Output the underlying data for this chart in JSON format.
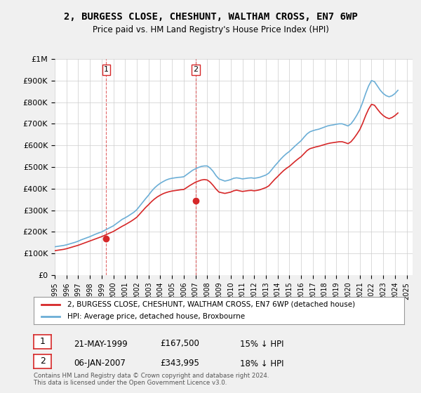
{
  "title": "2, BURGESS CLOSE, CHESHUNT, WALTHAM CROSS, EN7 6WP",
  "subtitle": "Price paid vs. HM Land Registry's House Price Index (HPI)",
  "legend_line1": "2, BURGESS CLOSE, CHESHUNT, WALTHAM CROSS, EN7 6WP (detached house)",
  "legend_line2": "HPI: Average price, detached house, Broxbourne",
  "annotation1_label": "1",
  "annotation1_date": "21-MAY-1999",
  "annotation1_price": "£167,500",
  "annotation1_hpi": "15% ↓ HPI",
  "annotation2_label": "2",
  "annotation2_date": "06-JAN-2007",
  "annotation2_price": "£343,995",
  "annotation2_hpi": "18% ↓ HPI",
  "footer": "Contains HM Land Registry data © Crown copyright and database right 2024.\nThis data is licensed under the Open Government Licence v3.0.",
  "sale1_year": 1999.38,
  "sale1_value": 167500,
  "sale2_year": 2007.01,
  "sale2_value": 343995,
  "hpi_color": "#6baed6",
  "price_color": "#d62728",
  "vline_color": "#d62728",
  "background_color": "#f0f0f0",
  "plot_background": "#ffffff",
  "ylim": [
    0,
    1000000
  ],
  "xlim_start": 1995,
  "xlim_end": 2025.5,
  "yticks": [
    0,
    100000,
    200000,
    300000,
    400000,
    500000,
    600000,
    700000,
    800000,
    900000,
    1000000
  ],
  "xticks": [
    1995,
    1996,
    1997,
    1998,
    1999,
    2000,
    2001,
    2002,
    2003,
    2004,
    2005,
    2006,
    2007,
    2008,
    2009,
    2010,
    2011,
    2012,
    2013,
    2014,
    2015,
    2016,
    2017,
    2018,
    2019,
    2020,
    2021,
    2022,
    2023,
    2024,
    2025
  ],
  "hpi_x": [
    1995.0,
    1995.25,
    1995.5,
    1995.75,
    1996.0,
    1996.25,
    1996.5,
    1996.75,
    1997.0,
    1997.25,
    1997.5,
    1997.75,
    1998.0,
    1998.25,
    1998.5,
    1998.75,
    1999.0,
    1999.25,
    1999.5,
    1999.75,
    2000.0,
    2000.25,
    2000.5,
    2000.75,
    2001.0,
    2001.25,
    2001.5,
    2001.75,
    2002.0,
    2002.25,
    2002.5,
    2002.75,
    2003.0,
    2003.25,
    2003.5,
    2003.75,
    2004.0,
    2004.25,
    2004.5,
    2004.75,
    2005.0,
    2005.25,
    2005.5,
    2005.75,
    2006.0,
    2006.25,
    2006.5,
    2006.75,
    2007.0,
    2007.25,
    2007.5,
    2007.75,
    2008.0,
    2008.25,
    2008.5,
    2008.75,
    2009.0,
    2009.25,
    2009.5,
    2009.75,
    2010.0,
    2010.25,
    2010.5,
    2010.75,
    2011.0,
    2011.25,
    2011.5,
    2011.75,
    2012.0,
    2012.25,
    2012.5,
    2012.75,
    2013.0,
    2013.25,
    2013.5,
    2013.75,
    2014.0,
    2014.25,
    2014.5,
    2014.75,
    2015.0,
    2015.25,
    2015.5,
    2015.75,
    2016.0,
    2016.25,
    2016.5,
    2016.75,
    2017.0,
    2017.25,
    2017.5,
    2017.75,
    2018.0,
    2018.25,
    2018.5,
    2018.75,
    2019.0,
    2019.25,
    2019.5,
    2019.75,
    2020.0,
    2020.25,
    2020.5,
    2020.75,
    2021.0,
    2021.25,
    2021.5,
    2021.75,
    2022.0,
    2022.25,
    2022.5,
    2022.75,
    2023.0,
    2023.25,
    2023.5,
    2023.75,
    2024.0,
    2024.25
  ],
  "hpi_y": [
    131000,
    133000,
    135000,
    137000,
    140000,
    144000,
    148000,
    152000,
    157000,
    163000,
    168000,
    173000,
    178000,
    184000,
    190000,
    195000,
    200000,
    207000,
    214000,
    221000,
    228000,
    238000,
    248000,
    258000,
    265000,
    273000,
    282000,
    291000,
    303000,
    320000,
    337000,
    354000,
    370000,
    388000,
    403000,
    415000,
    425000,
    433000,
    440000,
    445000,
    448000,
    450000,
    452000,
    453000,
    455000,
    465000,
    475000,
    485000,
    492000,
    498000,
    503000,
    505000,
    505000,
    495000,
    480000,
    460000,
    445000,
    440000,
    435000,
    438000,
    442000,
    448000,
    450000,
    448000,
    445000,
    447000,
    449000,
    450000,
    448000,
    450000,
    453000,
    458000,
    463000,
    472000,
    488000,
    505000,
    520000,
    536000,
    550000,
    562000,
    572000,
    585000,
    598000,
    610000,
    622000,
    638000,
    653000,
    663000,
    668000,
    672000,
    675000,
    680000,
    685000,
    690000,
    693000,
    695000,
    698000,
    700000,
    700000,
    695000,
    690000,
    700000,
    718000,
    740000,
    765000,
    800000,
    840000,
    875000,
    900000,
    895000,
    875000,
    855000,
    840000,
    830000,
    825000,
    830000,
    840000,
    855000
  ],
  "price_x": [
    1995.0,
    1995.25,
    1995.5,
    1995.75,
    1996.0,
    1996.25,
    1996.5,
    1996.75,
    1997.0,
    1997.25,
    1997.5,
    1997.75,
    1998.0,
    1998.25,
    1998.5,
    1998.75,
    1999.0,
    1999.25,
    1999.5,
    1999.75,
    2000.0,
    2000.25,
    2000.5,
    2000.75,
    2001.0,
    2001.25,
    2001.5,
    2001.75,
    2002.0,
    2002.25,
    2002.5,
    2002.75,
    2003.0,
    2003.25,
    2003.5,
    2003.75,
    2004.0,
    2004.25,
    2004.5,
    2004.75,
    2005.0,
    2005.25,
    2005.5,
    2005.75,
    2006.0,
    2006.25,
    2006.5,
    2006.75,
    2007.0,
    2007.25,
    2007.5,
    2007.75,
    2008.0,
    2008.25,
    2008.5,
    2008.75,
    2009.0,
    2009.25,
    2009.5,
    2009.75,
    2010.0,
    2010.25,
    2010.5,
    2010.75,
    2011.0,
    2011.25,
    2011.5,
    2011.75,
    2012.0,
    2012.25,
    2012.5,
    2012.75,
    2013.0,
    2013.25,
    2013.5,
    2013.75,
    2014.0,
    2014.25,
    2014.5,
    2014.75,
    2015.0,
    2015.25,
    2015.5,
    2015.75,
    2016.0,
    2016.25,
    2016.5,
    2016.75,
    2017.0,
    2017.25,
    2017.5,
    2017.75,
    2018.0,
    2018.25,
    2018.5,
    2018.75,
    2019.0,
    2019.25,
    2019.5,
    2019.75,
    2020.0,
    2020.25,
    2020.5,
    2020.75,
    2021.0,
    2021.25,
    2021.5,
    2021.75,
    2022.0,
    2022.25,
    2022.5,
    2022.75,
    2023.0,
    2023.25,
    2023.5,
    2023.75,
    2024.0,
    2024.25
  ],
  "price_y": [
    113000,
    115000,
    117000,
    119000,
    122000,
    126000,
    130000,
    134000,
    138000,
    143000,
    148000,
    153000,
    158000,
    163000,
    168000,
    173000,
    178000,
    184000,
    190000,
    196000,
    202000,
    210000,
    218000,
    226000,
    233000,
    241000,
    249000,
    258000,
    268000,
    283000,
    298000,
    313000,
    326000,
    340000,
    352000,
    362000,
    370000,
    377000,
    382000,
    386000,
    389000,
    391000,
    393000,
    395000,
    396000,
    405000,
    414000,
    422000,
    430000,
    435000,
    440000,
    442000,
    440000,
    430000,
    415000,
    398000,
    384000,
    381000,
    378000,
    381000,
    384000,
    390000,
    393000,
    390000,
    387000,
    389000,
    391000,
    392000,
    390000,
    392000,
    395000,
    400000,
    405000,
    413000,
    428000,
    443000,
    456000,
    470000,
    483000,
    494000,
    503000,
    515000,
    527000,
    538000,
    548000,
    562000,
    576000,
    585000,
    589000,
    593000,
    596000,
    600000,
    604000,
    608000,
    611000,
    613000,
    615000,
    617000,
    617000,
    613000,
    608000,
    617000,
    633000,
    652000,
    673000,
    703000,
    738000,
    768000,
    790000,
    786000,
    768000,
    751000,
    738000,
    729000,
    724000,
    729000,
    738000,
    750000
  ]
}
